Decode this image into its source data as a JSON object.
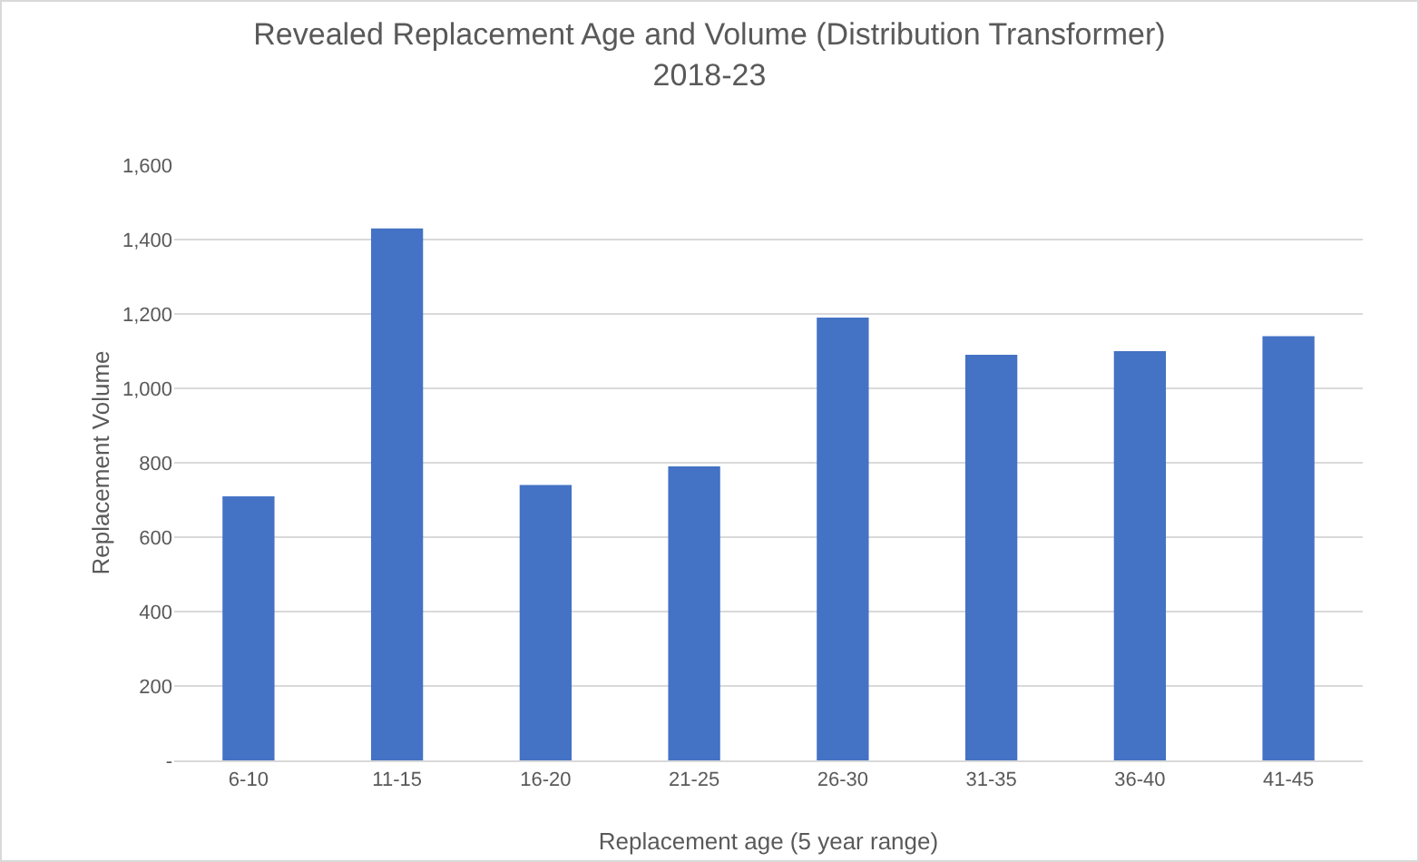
{
  "chart_data": {
    "type": "bar",
    "title": "Revealed Replacement Age and Volume (Distribution Transformer)\n2018-23",
    "xlabel": "Replacement age (5 year range)",
    "ylabel": "Replacement Volume",
    "categories": [
      "6-10",
      "11-15",
      "16-20",
      "21-25",
      "26-30",
      "31-35",
      "36-40",
      "41-45"
    ],
    "values": [
      710,
      1430,
      740,
      790,
      1190,
      1090,
      1100,
      1140
    ],
    "color": "#4472c4",
    "ylim": [
      0,
      1600
    ],
    "yticks": [
      {
        "value": 0,
        "label": "-"
      },
      {
        "value": 200,
        "label": "200"
      },
      {
        "value": 400,
        "label": "400"
      },
      {
        "value": 600,
        "label": "600"
      },
      {
        "value": 800,
        "label": "800"
      },
      {
        "value": 1000,
        "label": "1,000"
      },
      {
        "value": 1200,
        "label": "1,200"
      },
      {
        "value": 1400,
        "label": "1,400"
      },
      {
        "value": 1600,
        "label": "1,600"
      }
    ],
    "grid": "y"
  }
}
